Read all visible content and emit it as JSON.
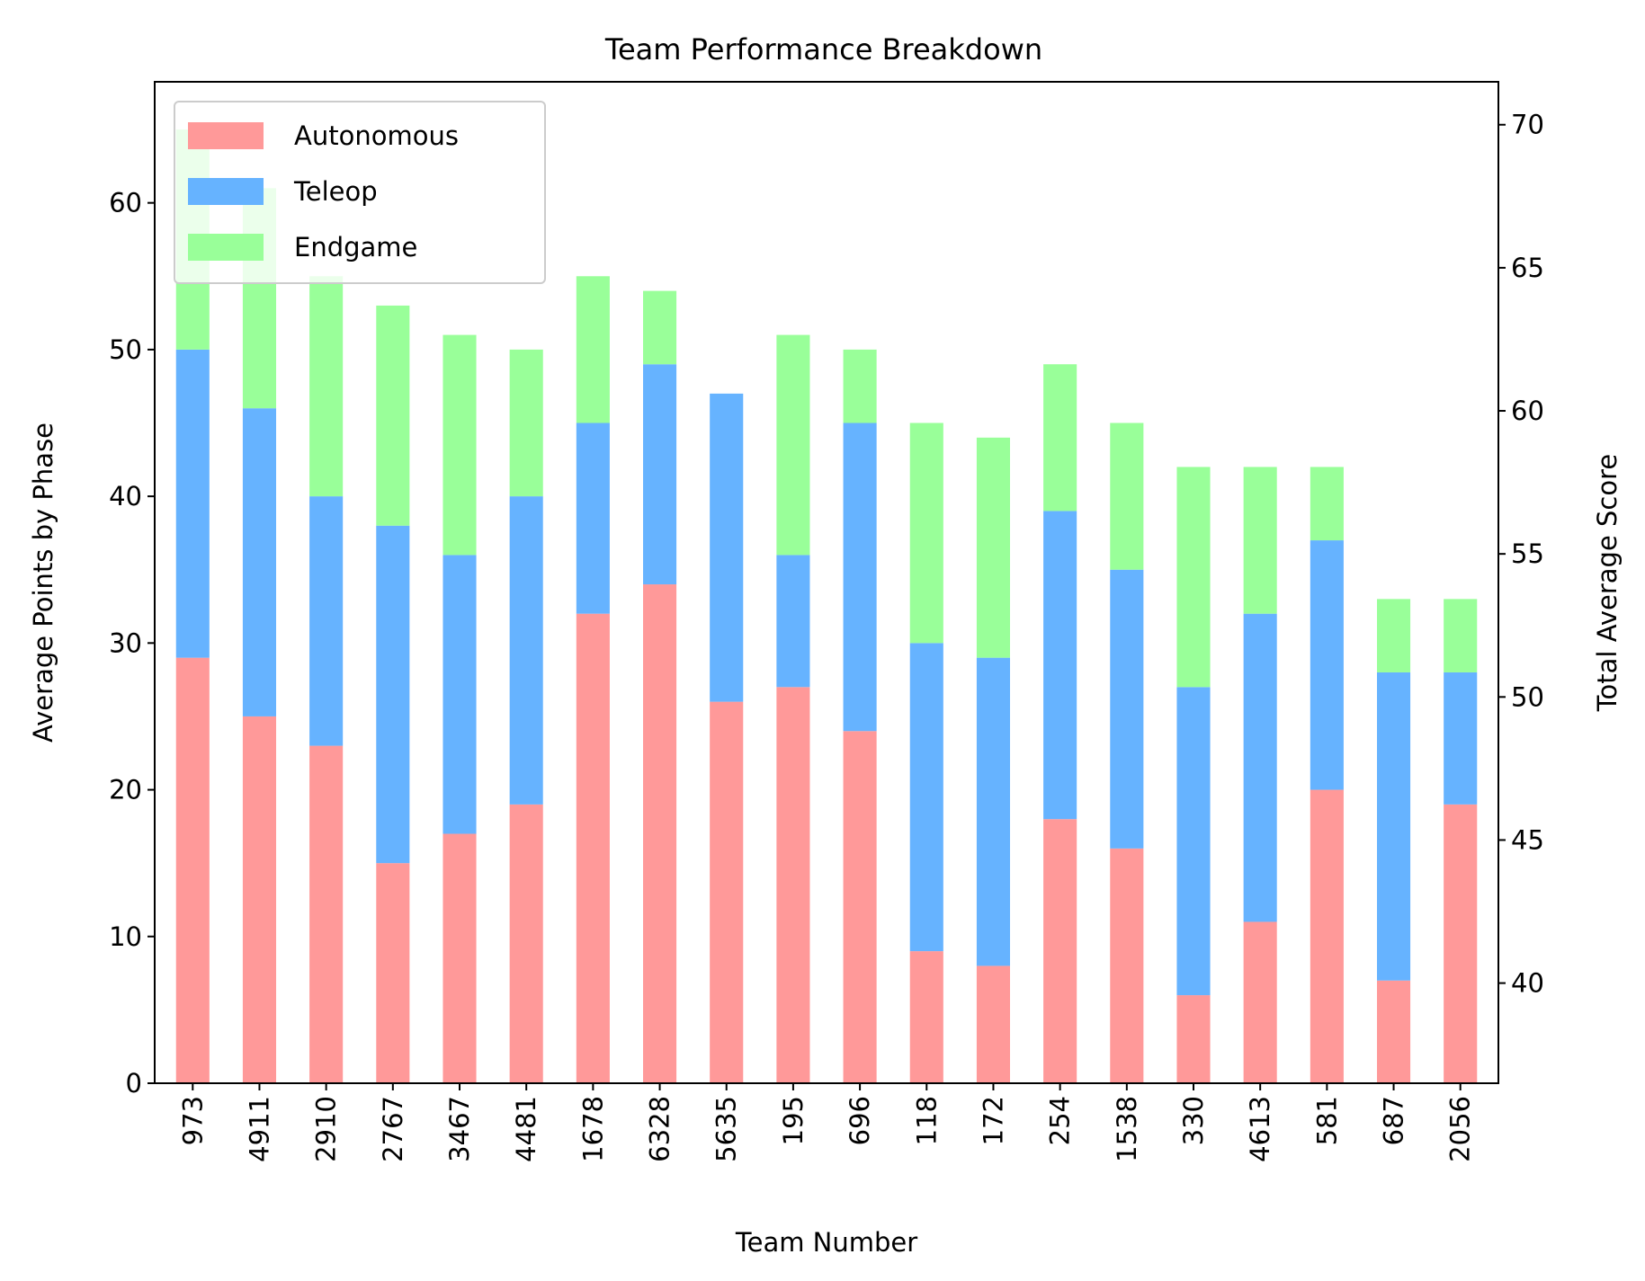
{
  "chart_data": {
    "type": "bar",
    "stacked": true,
    "title": "Team Performance Breakdown",
    "xlabel": "Team Number",
    "ylabel": "Average Points by Phase",
    "ylabel_right": "Total Average Score",
    "categories": [
      "973",
      "4911",
      "2910",
      "2767",
      "3467",
      "4481",
      "1678",
      "6328",
      "5635",
      "195",
      "696",
      "118",
      "172",
      "254",
      "1538",
      "330",
      "4613",
      "581",
      "687",
      "2056"
    ],
    "series": [
      {
        "name": "Autonomous",
        "color": "#ff9999",
        "values": [
          29,
          25,
          23,
          15,
          17,
          19,
          32,
          34,
          26,
          27,
          24,
          9,
          8,
          18,
          16,
          6,
          11,
          20,
          7,
          19
        ]
      },
      {
        "name": "Teleop",
        "color": "#66b3ff",
        "values": [
          21,
          21,
          17,
          23,
          19,
          21,
          13,
          15,
          21,
          9,
          21,
          21,
          21,
          21,
          19,
          21,
          21,
          17,
          21,
          9
        ]
      },
      {
        "name": "Endgame",
        "color": "#99ff99",
        "values": [
          15,
          15,
          15,
          15,
          15,
          10,
          10,
          5,
          0,
          15,
          5,
          15,
          15,
          10,
          10,
          15,
          10,
          5,
          5,
          5
        ]
      }
    ],
    "ylim": [
      0,
      68.25
    ],
    "yticks": [
      0,
      10,
      20,
      30,
      40,
      50,
      60
    ],
    "ylim_right": [
      36.5,
      71.5
    ],
    "yticks_right": [
      40,
      45,
      50,
      55,
      60,
      65,
      70
    ],
    "legend": {
      "placement": "upper-left",
      "entries": [
        "Autonomous",
        "Teleop",
        "Endgame"
      ]
    },
    "grid": false
  }
}
